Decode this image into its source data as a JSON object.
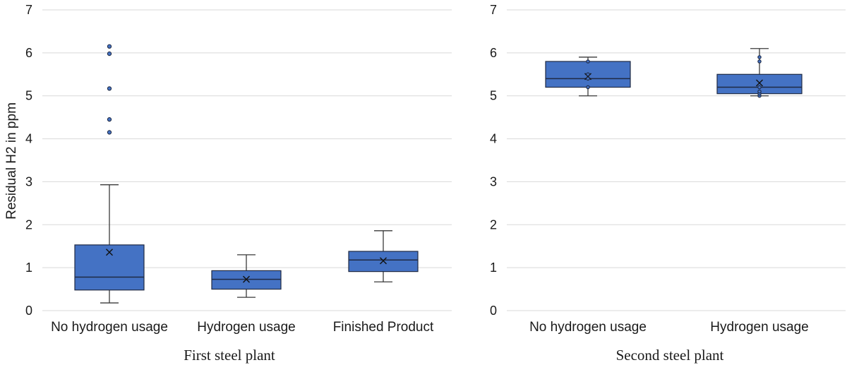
{
  "chart_data": [
    {
      "type": "box",
      "title": "First steel plant",
      "ylabel": "Residual H2 in ppm",
      "ylim": [
        0,
        7
      ],
      "yticks": [
        0,
        1,
        2,
        3,
        4,
        5,
        6,
        7
      ],
      "grid": true,
      "categories": [
        "No hydrogen usage",
        "Hydrogen usage",
        "Finished Product"
      ],
      "boxes": [
        {
          "category": "No hydrogen usage",
          "min": 0.18,
          "q1": 0.48,
          "median": 0.78,
          "q3": 1.53,
          "max": 2.93,
          "mean": 1.36,
          "outliers": [
            4.15,
            4.45,
            5.17,
            5.98,
            6.15
          ]
        },
        {
          "category": "Hydrogen usage",
          "min": 0.31,
          "q1": 0.5,
          "median": 0.73,
          "q3": 0.93,
          "max": 1.3,
          "mean": 0.73,
          "outliers": []
        },
        {
          "category": "Finished Product",
          "min": 0.67,
          "q1": 0.91,
          "median": 1.18,
          "q3": 1.38,
          "max": 1.86,
          "mean": 1.16,
          "outliers": []
        }
      ]
    },
    {
      "type": "box",
      "title": "Second steel plant",
      "ylabel": "",
      "ylim": [
        0,
        7
      ],
      "yticks": [
        0,
        1,
        2,
        3,
        4,
        5,
        6,
        7
      ],
      "grid": true,
      "categories": [
        "No hydrogen usage",
        "Hydrogen usage"
      ],
      "boxes": [
        {
          "category": "No hydrogen usage",
          "min": 5.0,
          "q1": 5.2,
          "median": 5.4,
          "q3": 5.8,
          "max": 5.9,
          "mean": 5.45,
          "outliers": [],
          "points": [
            5.2,
            5.4,
            5.5,
            5.8
          ]
        },
        {
          "category": "Hydrogen usage",
          "min": 5.0,
          "q1": 5.05,
          "median": 5.2,
          "q3": 5.5,
          "max": 6.1,
          "mean": 5.3,
          "outliers": [],
          "points": [
            5.0,
            5.05,
            5.1,
            5.2,
            5.8,
            5.9
          ]
        }
      ]
    }
  ],
  "colors": {
    "box_fill": "#4472c4",
    "box_edge": "#1f2a44",
    "grid": "#d9d9d9"
  }
}
